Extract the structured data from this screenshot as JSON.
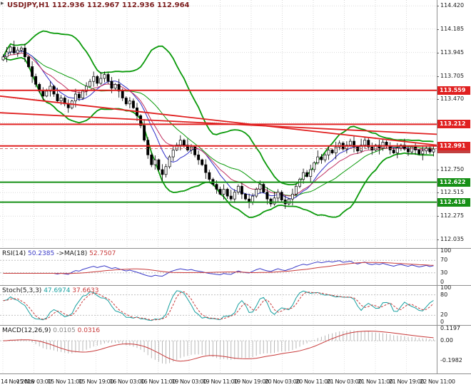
{
  "window": {
    "one_click_glyph": "▸"
  },
  "title": {
    "text": "USDJPY,H1 112.936 112.967 112.936 112.964"
  },
  "indicators": {
    "rsi": {
      "name": "RSI(14)",
      "value": "50.2385",
      "arrow": "->",
      "ma_name": "MA(18)",
      "ma_value": "52.7507",
      "levels": [
        70,
        30
      ],
      "scale_labels": [
        100,
        70,
        30,
        0
      ],
      "line_color": "#3a3ac8",
      "ma_color": "#c83a3a"
    },
    "stoch": {
      "name": "Stoch(5,3,3)",
      "k_value": "47.6974",
      "d_value": "37.6633",
      "levels": [
        80,
        20
      ],
      "scale_labels": [
        100,
        80,
        20,
        0
      ],
      "k_color": "#18a0a0",
      "d_color": "#c83a3a"
    },
    "macd": {
      "name": "MACD(12,26,9)",
      "main_value": "0.0105",
      "signal_value": "0.0316",
      "scale_labels": [
        {
          "text": "0.1197",
          "value": 0.1197
        },
        {
          "text": "0.00",
          "value": 0
        },
        {
          "text": "-0.1982",
          "value": -0.1982
        }
      ],
      "scale_max": 0.13,
      "scale_min": -0.3,
      "hist_color": "#b8b8b8",
      "signal_color": "#c83a3a"
    }
  },
  "chart_data": {
    "type": "candlestick",
    "symbol": "USDJPY",
    "timeframe": "H1",
    "ohlc_display": {
      "open": "112.936",
      "high": "112.967",
      "low": "112.936",
      "close": "112.964"
    },
    "price_axis_range": [
      111.95,
      114.48
    ],
    "price_ticks": [
      114.42,
      114.185,
      113.945,
      113.705,
      113.47,
      113.23,
      112.99,
      112.75,
      112.515,
      112.275,
      112.035
    ],
    "time_labels": [
      "14 Nov 2018",
      "15 Nov 03:00",
      "15 Nov 11:00",
      "15 Nov 19:00",
      "16 Nov 03:00",
      "16 Nov 11:00",
      "19 Nov 03:00",
      "19 Nov 11:00",
      "19 Nov 19:00",
      "20 Nov 03:00",
      "20 Nov 11:00",
      "21 Nov 03:00",
      "21 Nov 11:00",
      "21 Nov 19:00",
      "22 Nov 11:00"
    ],
    "closes": [
      113.9,
      113.95,
      114.0,
      113.94,
      113.97,
      113.99,
      113.9,
      113.8,
      113.7,
      113.62,
      113.55,
      113.5,
      113.55,
      113.6,
      113.52,
      113.45,
      113.48,
      113.42,
      113.38,
      113.45,
      113.52,
      113.48,
      113.55,
      113.6,
      113.65,
      113.7,
      113.63,
      113.68,
      113.72,
      113.65,
      113.58,
      113.62,
      113.55,
      113.48,
      113.42,
      113.45,
      113.38,
      113.3,
      113.2,
      113.05,
      112.9,
      112.8,
      112.85,
      112.75,
      112.7,
      112.78,
      112.88,
      112.95,
      113.0,
      113.05,
      113.0,
      112.95,
      112.98,
      112.9,
      112.85,
      112.8,
      112.72,
      112.65,
      112.6,
      112.55,
      112.5,
      112.55,
      112.48,
      112.45,
      112.52,
      112.58,
      112.5,
      112.45,
      112.42,
      112.48,
      112.55,
      112.6,
      112.52,
      112.45,
      112.4,
      112.46,
      112.52,
      112.44,
      112.4,
      112.45,
      112.5,
      112.58,
      112.65,
      112.72,
      112.68,
      112.75,
      112.82,
      112.88,
      112.85,
      112.9,
      112.95,
      112.92,
      112.98,
      113.02,
      112.96,
      113.0,
      113.04,
      112.98,
      112.94,
      113.0,
      113.05,
      112.98,
      112.95,
      113.0,
      112.97,
      113.03,
      112.99,
      112.95,
      112.92,
      112.97,
      113.0,
      112.96,
      112.93,
      112.98,
      112.95,
      112.91,
      112.94,
      112.97,
      112.93,
      112.96
    ],
    "wick_pattern": [
      0.025,
      0.05,
      0.015,
      0.065,
      0.03,
      0.02,
      0.045,
      0.012,
      0.055,
      0.028,
      0.018,
      0.04
    ],
    "bollinger": {
      "period": 20,
      "deviation": 2,
      "color": "#0a9a0a"
    },
    "ma_fast": {
      "period": 8,
      "color": "#3030c8"
    },
    "ma_med": {
      "period": 13,
      "color": "#c03060"
    },
    "trendlines": [
      {
        "from": 113.5,
        "to": 113.0
      },
      {
        "from": 113.33,
        "to": 113.11
      }
    ],
    "trendline_color": "#e02020",
    "levels": [
      {
        "price": 113.559,
        "label": "113.559",
        "color": "#e02020",
        "type": "resistance"
      },
      {
        "price": 113.212,
        "label": "113.212",
        "color": "#e02020",
        "type": "resistance"
      },
      {
        "price": 112.991,
        "label": "112.991",
        "color": "#e02020",
        "type": "resistance"
      },
      {
        "price": 112.622,
        "label": "112.622",
        "color": "#169016",
        "type": "support"
      },
      {
        "price": 112.418,
        "label": "112.418",
        "color": "#169016",
        "type": "support"
      }
    ],
    "current_price": {
      "value": 112.964,
      "label": "112.964",
      "badge_color": "#c24040"
    },
    "candle_up_fill": "#ffffff",
    "candle_down_fill": "#000000",
    "candle_stroke": "#000000"
  }
}
